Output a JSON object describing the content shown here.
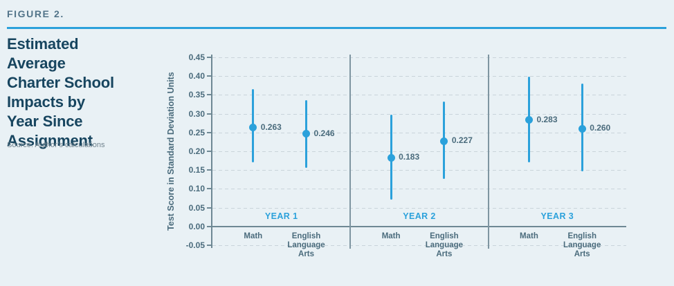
{
  "header": {
    "figure_label": "FIGURE 2.",
    "title": "Estimated\nAverage\nCharter School\nImpacts by\nYear Since\nAssignment",
    "source": "Source: Author’s calculations"
  },
  "colors": {
    "background": "#E9F1F5",
    "accent_blue": "#2BA1DB",
    "title_text": "#17455F",
    "figure_label_text": "#527489",
    "slate_text": "#4A6B7C",
    "axis_line": "#6E8894",
    "gridline": "#C9D4DA",
    "source_text": "#70838E"
  },
  "chart_data": {
    "type": "scatter",
    "subtype": "dot-plot-with-error-bars",
    "title": "Estimated Average Charter School Impacts by Year Since Assignment",
    "xlabel": "",
    "ylabel": "Test Score in Standard Deviation Units",
    "ylim": [
      -0.05,
      0.45
    ],
    "ytick_step": 0.05,
    "ytick_labels": [
      "0.45",
      "0.40",
      "0.35",
      "0.30",
      "0.25",
      "0.20",
      "0.15",
      "0.10",
      "0.05",
      "0.00",
      "-0.05"
    ],
    "grid": "horizontal-dashed",
    "legend": "none",
    "groups": [
      {
        "label": "YEAR 1",
        "points": [
          {
            "category": "Math",
            "value": 0.263,
            "value_label": "0.263",
            "ci_low": 0.17,
            "ci_high": 0.365
          },
          {
            "category": "English Language Arts",
            "value": 0.246,
            "value_label": "0.246",
            "ci_low": 0.155,
            "ci_high": 0.336
          }
        ]
      },
      {
        "label": "YEAR 2",
        "points": [
          {
            "category": "Math",
            "value": 0.183,
            "value_label": "0.183",
            "ci_low": 0.072,
            "ci_high": 0.298
          },
          {
            "category": "English Language Arts",
            "value": 0.227,
            "value_label": "0.227",
            "ci_low": 0.127,
            "ci_high": 0.333
          }
        ]
      },
      {
        "label": "YEAR 3",
        "points": [
          {
            "category": "Math",
            "value": 0.283,
            "value_label": "0.283",
            "ci_low": 0.17,
            "ci_high": 0.399
          },
          {
            "category": "English Language Arts",
            "value": 0.26,
            "value_label": "0.260",
            "ci_low": 0.146,
            "ci_high": 0.38
          }
        ]
      }
    ]
  }
}
